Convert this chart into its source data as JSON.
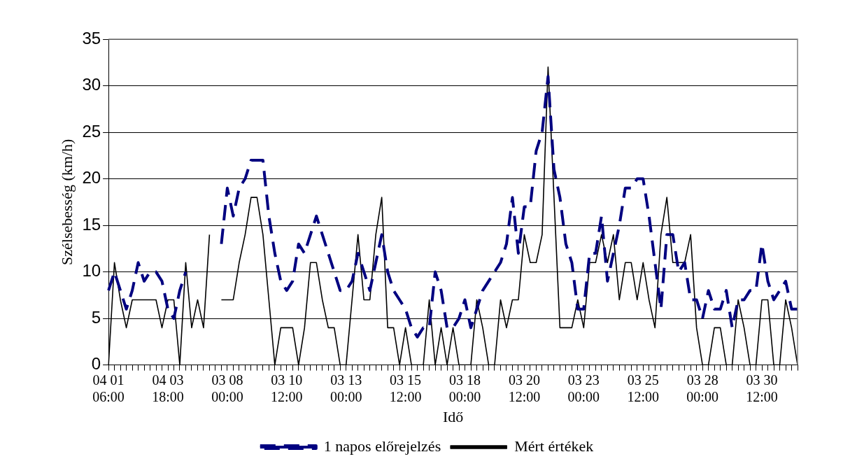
{
  "chart_data": {
    "type": "line",
    "xlabel": "Idő",
    "ylabel": "Szélsebesség (km/h)",
    "categories": [
      "04 01 06:00",
      null,
      null,
      null,
      null,
      null,
      null,
      null,
      null,
      null,
      "04 03 18:00",
      null,
      null,
      null,
      null,
      null,
      null,
      null,
      null,
      null,
      "03 08 00:00",
      null,
      null,
      null,
      null,
      null,
      null,
      null,
      null,
      null,
      "03 10 12:00",
      null,
      null,
      null,
      null,
      null,
      null,
      null,
      null,
      null,
      "03 13 00:00",
      null,
      null,
      null,
      null,
      null,
      null,
      null,
      null,
      null,
      "03 15 12:00",
      null,
      null,
      null,
      null,
      null,
      null,
      null,
      null,
      null,
      "03 18 00:00",
      null,
      null,
      null,
      null,
      null,
      null,
      null,
      null,
      null,
      "03 20 12:00",
      null,
      null,
      null,
      null,
      null,
      null,
      null,
      null,
      null,
      "03 23 00:00",
      null,
      null,
      null,
      null,
      null,
      null,
      null,
      null,
      null,
      "03 25 12:00",
      null,
      null,
      null,
      null,
      null,
      null,
      null,
      null,
      null,
      "03 28 00:00",
      null,
      null,
      null,
      null,
      null,
      null,
      null,
      null,
      null,
      "03 30 12:00",
      null,
      null,
      null,
      null,
      null,
      null
    ],
    "series": [
      {
        "name": "1 napos előrejelzés",
        "color": "#000080",
        "line_style": "dashed",
        "values": [
          8,
          10,
          8,
          6,
          8,
          11,
          9,
          10,
          10,
          9,
          6,
          5,
          8,
          10,
          null,
          null,
          null,
          null,
          null,
          13,
          19,
          16,
          19,
          20,
          22,
          22,
          22,
          16,
          12,
          9,
          8,
          9,
          13,
          12,
          14,
          16,
          14,
          12,
          10,
          8,
          8,
          9,
          12,
          10,
          8,
          11,
          14,
          10,
          8,
          7,
          6,
          4,
          3,
          4,
          4,
          10,
          8,
          4,
          4,
          5,
          7,
          4,
          6,
          8,
          9,
          10,
          11,
          13,
          18,
          12,
          17,
          17,
          23,
          25,
          31,
          21,
          18,
          13,
          11,
          6,
          6,
          12,
          12,
          16,
          9,
          12,
          15,
          19,
          19,
          20,
          20,
          16,
          11,
          6,
          14,
          14,
          10,
          11,
          7,
          7,
          5,
          8,
          6,
          6,
          8,
          4,
          7,
          7,
          8,
          8,
          13,
          9,
          7,
          8,
          9,
          6,
          6
        ]
      },
      {
        "name": "Mért értékek",
        "color": "#000000",
        "line_style": "solid",
        "values": [
          0,
          11,
          7,
          4,
          7,
          7,
          7,
          7,
          7,
          4,
          7,
          7,
          0,
          11,
          4,
          7,
          4,
          14,
          null,
          7,
          7,
          7,
          11,
          14,
          18,
          18,
          14,
          7,
          0,
          4,
          4,
          4,
          0,
          4,
          11,
          11,
          7,
          4,
          4,
          0,
          0,
          7,
          14,
          7,
          7,
          14,
          18,
          4,
          4,
          0,
          4,
          0,
          0,
          0,
          7,
          0,
          4,
          0,
          4,
          0,
          0,
          0,
          7,
          4,
          0,
          0,
          7,
          4,
          7,
          7,
          14,
          11,
          11,
          14,
          32,
          18,
          4,
          4,
          4,
          7,
          4,
          11,
          11,
          14,
          11,
          14,
          7,
          11,
          11,
          7,
          11,
          7,
          4,
          14,
          18,
          11,
          11,
          11,
          14,
          4,
          0,
          0,
          4,
          4,
          0,
          0,
          7,
          4,
          0,
          0,
          7,
          7,
          0,
          0,
          7,
          4,
          0
        ]
      }
    ],
    "ylim": [
      0,
      35
    ],
    "yticks": [
      0,
      5,
      10,
      15,
      20,
      25,
      30,
      35
    ],
    "grid": "y",
    "legend": "bottom",
    "marker": "none"
  }
}
